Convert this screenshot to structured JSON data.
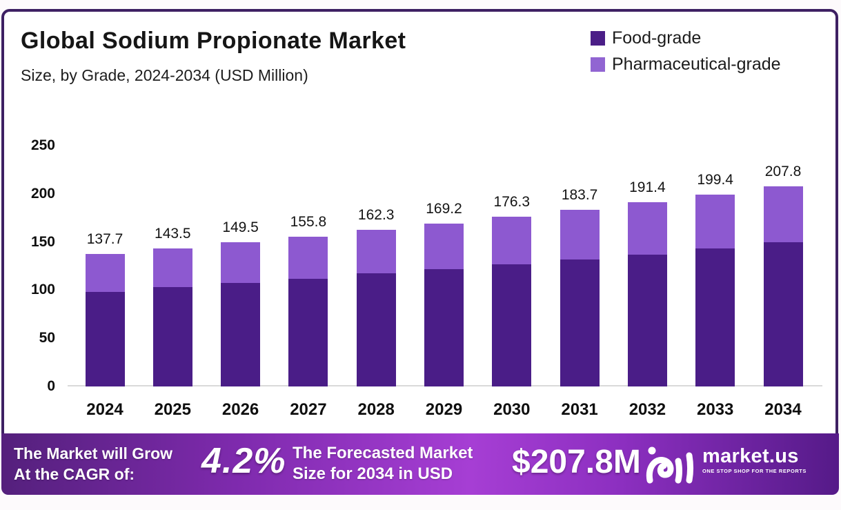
{
  "header": {
    "title": "Global Sodium Propionate Market",
    "subtitle": "Size, by Grade, 2024-2034 (USD Million)"
  },
  "legend": [
    {
      "label": "Food-grade",
      "color": "#4b1e87"
    },
    {
      "label": "Pharmaceutical-grade",
      "color": "#9165d2"
    }
  ],
  "chart_data": {
    "type": "bar",
    "stacked": true,
    "title": "Global Sodium Propionate Market Size, by Grade, 2024-2034 (USD Million)",
    "categories": [
      "2024",
      "2025",
      "2026",
      "2027",
      "2028",
      "2029",
      "2030",
      "2031",
      "2032",
      "2033",
      "2034"
    ],
    "series": [
      {
        "name": "Food-grade",
        "color": "#4a1d87",
        "values": [
          98.5,
          103.0,
          107.5,
          112.0,
          117.5,
          122.0,
          127.0,
          132.0,
          137.0,
          143.0,
          150.0
        ]
      },
      {
        "name": "Pharmaceutical-grade",
        "color": "#8d59d0",
        "values": [
          39.2,
          40.5,
          42.0,
          43.8,
          44.8,
          47.2,
          49.3,
          51.7,
          54.4,
          56.4,
          57.8
        ]
      }
    ],
    "totals": [
      137.7,
      143.5,
      149.5,
      155.8,
      162.3,
      169.2,
      176.3,
      183.7,
      191.4,
      199.4,
      207.8
    ],
    "total_labels": [
      "137.7",
      "143.5",
      "149.5",
      "155.8",
      "162.3",
      "169.2",
      "176.3",
      "183.7",
      "191.4",
      "199.4",
      "207.8"
    ],
    "xlabel": "",
    "ylabel": "",
    "yticks": [
      0,
      50,
      100,
      150,
      200,
      250
    ],
    "ylim": [
      0,
      250
    ],
    "grid": false,
    "legend_position": "top-right"
  },
  "banner": {
    "left_line1": "The Market will Grow",
    "left_line2": "At the CAGR of:",
    "cagr": "4.2%",
    "mid_line1": "The Forecasted Market",
    "mid_line2": "Size for 2034 in USD",
    "forecast_value": "$207.8M",
    "brand": "market.us",
    "brand_tagline": "ONE STOP SHOP FOR THE REPORTS"
  },
  "colors": {
    "frame_border": "#3e2063",
    "axis_line": "#d9d9d9",
    "food_grade_bar": "#4a1d87",
    "pharma_grade_bar": "#8d59d0",
    "banner_gradient_left": "#54207c",
    "banner_gradient_mid": "#a63ed4",
    "banner_gradient_right": "#551a88",
    "text": "#141414",
    "banner_text": "#ffffff"
  }
}
